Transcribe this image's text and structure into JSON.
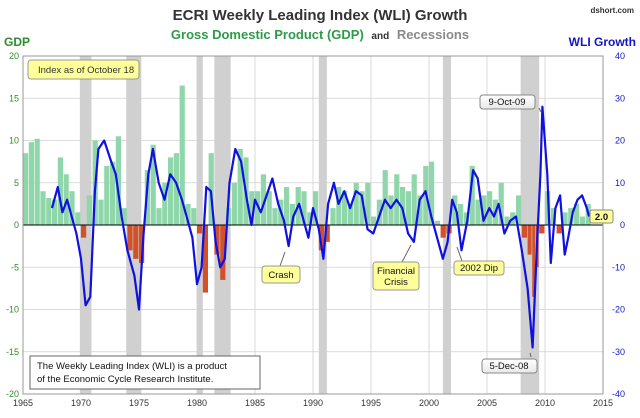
{
  "header": {
    "title": "ECRI Weekly Leading Index (WLI) Growth",
    "subtitle_gdp": "Gross Domestic Product (GDP)",
    "subtitle_and": "and",
    "subtitle_rec": "Recessions",
    "source": "dshort.com",
    "left_axis_label": "GDP",
    "right_axis_label": "WLI Growth"
  },
  "colors": {
    "title": "#333333",
    "gdp_positive": "#8fd6aa",
    "gdp_negative": "#d0512a",
    "wli_line": "#1010e0",
    "recession": "#c8c8c8",
    "grid": "#d0d0d0",
    "left_axis": "#2e8b2e",
    "right_axis": "#1414c8",
    "callout_fill": "#ffff99"
  },
  "annotations": {
    "index_as_of": "Index as of October 18",
    "peak_label": "9-Oct-09",
    "trough_label": "5-Dec-08",
    "crash": "Crash",
    "financial_crisis_1": "Financial",
    "financial_crisis_2": "Crisis",
    "dip_2002": "2002 Dip",
    "latest_value": "2.0",
    "footnote_1": "The Weekly Leading Index (WLI) is a product",
    "footnote_2": "of the Economic Cycle Research Institute."
  },
  "chart_data": {
    "type": "bar+line",
    "title": "ECRI Weekly Leading Index (WLI) Growth",
    "x_ticks": [
      "1965",
      "1970",
      "1975",
      "1980",
      "1985",
      "1990",
      "1995",
      "2000",
      "2005",
      "2010",
      "2015"
    ],
    "xlim": [
      1965,
      2015
    ],
    "y_left": {
      "label": "GDP",
      "lim": [
        -20,
        20
      ],
      "ticks": [
        -20,
        -15,
        -10,
        -5,
        0,
        5,
        10,
        15,
        20
      ]
    },
    "y_right": {
      "label": "WLI Growth",
      "lim": [
        -40,
        40
      ],
      "ticks": [
        -40,
        -30,
        -20,
        -10,
        0,
        10,
        20,
        30,
        40
      ]
    },
    "recessions": [
      [
        1969.9,
        1970.9
      ],
      [
        1973.9,
        1975.2
      ],
      [
        1980.0,
        1980.5
      ],
      [
        1981.5,
        1982.9
      ],
      [
        1990.5,
        1991.2
      ],
      [
        2001.2,
        2001.9
      ],
      [
        2007.9,
        2009.5
      ]
    ],
    "gdp_series": {
      "name": "Gross Domestic Product (GDP)",
      "points": [
        [
          1965.0,
          8.5
        ],
        [
          1965.5,
          9.8
        ],
        [
          1966.0,
          10.2
        ],
        [
          1966.5,
          4.0
        ],
        [
          1967.0,
          3.2
        ],
        [
          1967.5,
          3.0
        ],
        [
          1968.0,
          8.0
        ],
        [
          1968.5,
          6.0
        ],
        [
          1969.0,
          4.0
        ],
        [
          1969.5,
          1.5
        ],
        [
          1970.0,
          -1.5
        ],
        [
          1970.5,
          3.5
        ],
        [
          1971.0,
          10.0
        ],
        [
          1971.5,
          3.0
        ],
        [
          1972.0,
          7.0
        ],
        [
          1972.5,
          7.5
        ],
        [
          1973.0,
          10.5
        ],
        [
          1973.5,
          2.0
        ],
        [
          1974.0,
          -3.0
        ],
        [
          1974.5,
          -4.0
        ],
        [
          1975.0,
          -4.5
        ],
        [
          1975.5,
          6.5
        ],
        [
          1976.0,
          9.5
        ],
        [
          1976.5,
          2.0
        ],
        [
          1977.0,
          5.0
        ],
        [
          1977.5,
          8.0
        ],
        [
          1978.0,
          8.5
        ],
        [
          1978.5,
          16.5
        ],
        [
          1979.0,
          2.5
        ],
        [
          1979.5,
          2.0
        ],
        [
          1980.0,
          -1.0
        ],
        [
          1980.5,
          -8.0
        ],
        [
          1981.0,
          8.5
        ],
        [
          1981.5,
          -3.5
        ],
        [
          1982.0,
          -6.5
        ],
        [
          1982.5,
          2.0
        ],
        [
          1983.0,
          5.0
        ],
        [
          1983.5,
          9.0
        ],
        [
          1984.0,
          8.0
        ],
        [
          1984.5,
          4.0
        ],
        [
          1985.0,
          4.0
        ],
        [
          1985.5,
          6.0
        ],
        [
          1986.0,
          4.0
        ],
        [
          1986.5,
          2.0
        ],
        [
          1987.0,
          3.0
        ],
        [
          1987.5,
          4.5
        ],
        [
          1988.0,
          2.5
        ],
        [
          1988.5,
          4.5
        ],
        [
          1989.0,
          4.0
        ],
        [
          1989.5,
          1.5
        ],
        [
          1990.0,
          4.0
        ],
        [
          1990.5,
          -3.0
        ],
        [
          1991.0,
          -2.0
        ],
        [
          1991.5,
          2.0
        ],
        [
          1992.0,
          4.5
        ],
        [
          1992.5,
          4.0
        ],
        [
          1993.0,
          2.5
        ],
        [
          1993.5,
          5.0
        ],
        [
          1994.0,
          4.0
        ],
        [
          1994.5,
          5.0
        ],
        [
          1995.0,
          1.0
        ],
        [
          1995.5,
          3.0
        ],
        [
          1996.0,
          6.5
        ],
        [
          1996.5,
          3.5
        ],
        [
          1997.0,
          6.0
        ],
        [
          1997.5,
          4.5
        ],
        [
          1998.0,
          4.0
        ],
        [
          1998.5,
          6.0
        ],
        [
          1999.0,
          3.5
        ],
        [
          1999.5,
          7.0
        ],
        [
          2000.0,
          7.5
        ],
        [
          2000.5,
          0.5
        ],
        [
          2001.0,
          -1.5
        ],
        [
          2001.5,
          -1.0
        ],
        [
          2002.0,
          3.5
        ],
        [
          2002.5,
          2.5
        ],
        [
          2003.0,
          1.5
        ],
        [
          2003.5,
          7.0
        ],
        [
          2004.0,
          3.0
        ],
        [
          2004.5,
          3.5
        ],
        [
          2005.0,
          4.0
        ],
        [
          2005.5,
          3.0
        ],
        [
          2006.0,
          5.0
        ],
        [
          2006.5,
          1.0
        ],
        [
          2007.0,
          1.5
        ],
        [
          2007.5,
          3.5
        ],
        [
          2008.0,
          -1.5
        ],
        [
          2008.5,
          -3.5
        ],
        [
          2008.9,
          -8.5
        ],
        [
          2009.2,
          -5.0
        ],
        [
          2009.5,
          -1.0
        ],
        [
          2010.0,
          4.0
        ],
        [
          2010.5,
          2.0
        ],
        [
          2011.0,
          -1.0
        ],
        [
          2011.5,
          1.5
        ],
        [
          2012.0,
          2.0
        ],
        [
          2012.5,
          2.5
        ],
        [
          2013.0,
          1.0
        ],
        [
          2013.5,
          2.5
        ]
      ]
    },
    "wli_series": {
      "name": "ECRI Weekly Leading Index (WLI) Growth",
      "points": [
        [
          1967.5,
          4
        ],
        [
          1968.0,
          9
        ],
        [
          1968.4,
          3
        ],
        [
          1968.8,
          6
        ],
        [
          1969.2,
          2
        ],
        [
          1969.6,
          -2
        ],
        [
          1970.0,
          -8
        ],
        [
          1970.4,
          -19
        ],
        [
          1970.8,
          -17
        ],
        [
          1971.2,
          8
        ],
        [
          1971.5,
          18
        ],
        [
          1972.0,
          20
        ],
        [
          1972.6,
          15
        ],
        [
          1973.0,
          12
        ],
        [
          1973.5,
          2
        ],
        [
          1974.0,
          -6
        ],
        [
          1974.6,
          -12
        ],
        [
          1975.0,
          -20
        ],
        [
          1975.4,
          -2
        ],
        [
          1975.8,
          12
        ],
        [
          1976.2,
          18
        ],
        [
          1976.7,
          10
        ],
        [
          1977.2,
          6
        ],
        [
          1977.7,
          12
        ],
        [
          1978.2,
          10
        ],
        [
          1978.7,
          6
        ],
        [
          1979.1,
          2
        ],
        [
          1979.6,
          -3
        ],
        [
          1980.0,
          -14
        ],
        [
          1980.4,
          -10
        ],
        [
          1980.8,
          9
        ],
        [
          1981.2,
          8
        ],
        [
          1981.6,
          -4
        ],
        [
          1982.0,
          -10
        ],
        [
          1982.4,
          -8
        ],
        [
          1982.8,
          10
        ],
        [
          1983.3,
          18
        ],
        [
          1983.8,
          15
        ],
        [
          1984.3,
          6
        ],
        [
          1984.7,
          0
        ],
        [
          1985.0,
          6
        ],
        [
          1985.5,
          3
        ],
        [
          1986.0,
          7
        ],
        [
          1986.5,
          11
        ],
        [
          1987.0,
          5
        ],
        [
          1987.5,
          1
        ],
        [
          1987.9,
          -5
        ],
        [
          1988.3,
          2
        ],
        [
          1988.8,
          5
        ],
        [
          1989.2,
          1
        ],
        [
          1989.6,
          -3
        ],
        [
          1990.0,
          4
        ],
        [
          1990.5,
          -1
        ],
        [
          1990.9,
          -8
        ],
        [
          1991.3,
          5
        ],
        [
          1991.8,
          10
        ],
        [
          1992.2,
          5
        ],
        [
          1992.7,
          8
        ],
        [
          1993.2,
          4
        ],
        [
          1993.7,
          8
        ],
        [
          1994.2,
          7
        ],
        [
          1994.7,
          -1
        ],
        [
          1995.2,
          -2
        ],
        [
          1995.7,
          2
        ],
        [
          1996.2,
          6
        ],
        [
          1996.7,
          4
        ],
        [
          1997.2,
          6
        ],
        [
          1997.7,
          4
        ],
        [
          1998.2,
          -2
        ],
        [
          1998.7,
          -4
        ],
        [
          1999.2,
          6
        ],
        [
          1999.7,
          8
        ],
        [
          2000.2,
          2
        ],
        [
          2000.7,
          -3
        ],
        [
          2001.2,
          -8
        ],
        [
          2001.6,
          -4
        ],
        [
          2002.0,
          6
        ],
        [
          2002.4,
          3
        ],
        [
          2002.8,
          -6
        ],
        [
          2003.3,
          1
        ],
        [
          2003.8,
          13
        ],
        [
          2004.2,
          11
        ],
        [
          2004.7,
          1
        ],
        [
          2005.2,
          4
        ],
        [
          2005.6,
          2
        ],
        [
          2006.0,
          5
        ],
        [
          2006.5,
          -2
        ],
        [
          2007.0,
          1
        ],
        [
          2007.5,
          2
        ],
        [
          2008.0,
          -6
        ],
        [
          2008.5,
          -15
        ],
        [
          2008.93,
          -29
        ],
        [
          2009.3,
          -5
        ],
        [
          2009.6,
          12
        ],
        [
          2009.78,
          28
        ],
        [
          2010.2,
          12
        ],
        [
          2010.5,
          -9
        ],
        [
          2010.9,
          4
        ],
        [
          2011.3,
          7
        ],
        [
          2011.7,
          -7
        ],
        [
          2012.0,
          -3
        ],
        [
          2012.4,
          3
        ],
        [
          2012.8,
          6
        ],
        [
          2013.2,
          7
        ],
        [
          2013.6,
          4
        ],
        [
          2013.8,
          2
        ]
      ]
    },
    "latest_wli": 2.0
  }
}
